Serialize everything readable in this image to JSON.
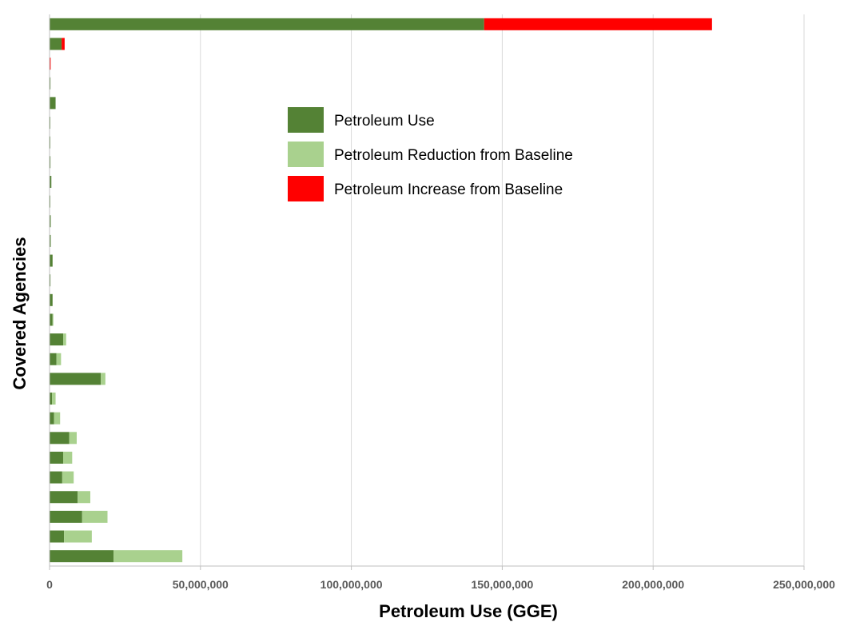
{
  "chart_data": {
    "type": "bar",
    "orientation": "horizontal",
    "stacked": true,
    "xlabel": "Petroleum Use (GGE)",
    "ylabel": "Covered Agencies",
    "xlim": [
      0,
      250000000
    ],
    "xticks": [
      0,
      50000000,
      100000000,
      150000000,
      200000000,
      250000000
    ],
    "xtick_labels": [
      "0",
      "50,000,000",
      "100,000,000",
      "150,000,000",
      "200,000,000",
      "250,000,000"
    ],
    "grid": "vertical",
    "legend_placement": "upper-center",
    "rows": 28,
    "series": [
      {
        "name": "Petroleum Use",
        "color": "#548235",
        "values": [
          144000000,
          4000000,
          100000,
          300000,
          2000000,
          200000,
          200000,
          300000,
          600000,
          200000,
          400000,
          400000,
          1000000,
          300000,
          1000000,
          1000000,
          4500000,
          2300000,
          17000000,
          800000,
          1500000,
          6500000,
          4500000,
          4200000,
          9300000,
          10800000,
          4800000,
          21200000
        ]
      },
      {
        "name": "Petroleum Reduction from Baseline",
        "color": "#A9D18E",
        "values": [
          0,
          0,
          0,
          0,
          0,
          0,
          0,
          0,
          0,
          0,
          0,
          0,
          0,
          0,
          0,
          200000,
          1000000,
          1500000,
          1500000,
          1200000,
          2000000,
          2500000,
          3000000,
          3800000,
          4200000,
          8400000,
          9200000,
          22800000
        ]
      },
      {
        "name": "Petroleum Increase from Baseline",
        "color": "#FF0000",
        "values": [
          75500000,
          1000000,
          100000,
          0,
          0,
          0,
          0,
          0,
          0,
          0,
          0,
          0,
          0,
          0,
          0,
          0,
          0,
          0,
          0,
          0,
          0,
          0,
          0,
          0,
          0,
          0,
          0,
          0
        ]
      }
    ]
  }
}
